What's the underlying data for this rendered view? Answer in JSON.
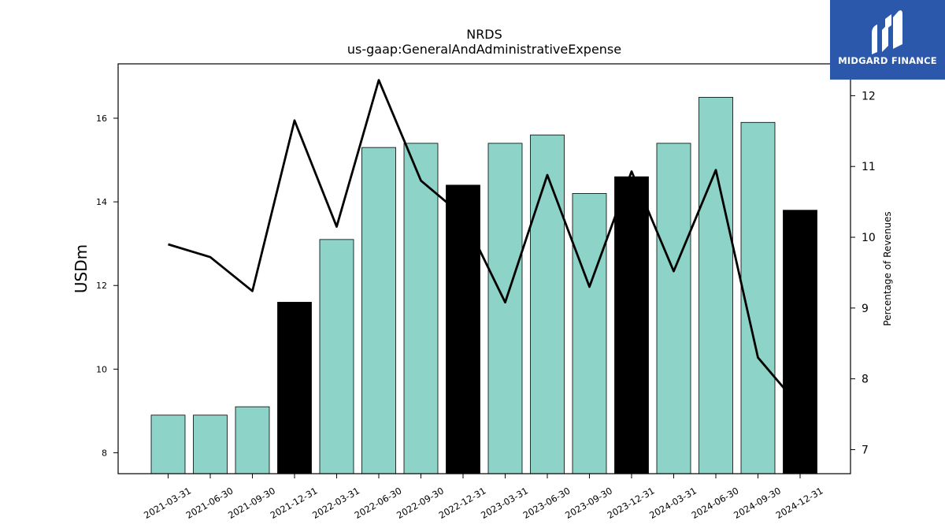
{
  "chart_data": {
    "type": "bar",
    "title": "NRDS",
    "subtitle": "us-gaap:GeneralAndAdministrativeExpense",
    "ylabel": "USDm",
    "y2label": "Percentage of Revenues",
    "categories": [
      "2021-03-31",
      "2021-06-30",
      "2021-09-30",
      "2021-12-31",
      "2022-03-31",
      "2022-06-30",
      "2022-09-30",
      "2022-12-31",
      "2023-03-31",
      "2023-06-30",
      "2023-09-30",
      "2023-12-31",
      "2024-03-31",
      "2024-06-30",
      "2024-09-30",
      "2024-12-31"
    ],
    "series": [
      {
        "values": [
          8.9,
          8.9,
          9.1,
          11.6,
          13.1,
          15.3,
          15.4,
          14.4,
          15.4,
          15.6,
          14.2,
          14.6,
          15.4,
          16.5,
          15.9,
          13.8
        ],
        "type": "bar",
        "axis": "left"
      },
      {
        "values": [
          9.9,
          9.72,
          9.24,
          11.65,
          10.15,
          12.22,
          10.8,
          10.3,
          9.08,
          10.88,
          9.3,
          10.93,
          9.52,
          10.95,
          8.3,
          7.6
        ],
        "type": "line",
        "axis": "right"
      }
    ],
    "year_end_bars": [
      "2021-12-31",
      "2022-12-31",
      "2023-12-31",
      "2024-12-31"
    ],
    "ylim": [
      7.5,
      17.3
    ],
    "y2lim": [
      6.66,
      12.45
    ],
    "yticks": [
      8,
      10,
      12,
      14,
      16
    ],
    "y2ticks": [
      7,
      8,
      9,
      10,
      11,
      12
    ],
    "colors": {
      "bar": "#8dd3c7",
      "year_end_bar": "#000000",
      "line": "#000000",
      "logo_bg": "#2b58aa"
    },
    "grid": false
  },
  "logo": {
    "text": "MIDGARD FINANCE",
    "icon": "midgard-logo-icon"
  }
}
